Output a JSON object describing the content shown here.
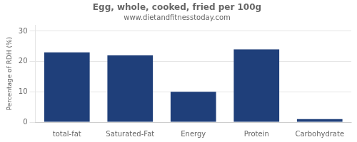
{
  "chart_data": {
    "type": "bar",
    "title": "Egg, whole, cooked, fried per 100g",
    "subtitle": "www.dietandfitnesstoday.com",
    "categories": [
      "total-fat",
      "Saturated-Fat",
      "Energy",
      "Protein",
      "Carbohydrate"
    ],
    "values": [
      23.0,
      22.0,
      10.0,
      24.0,
      1.0
    ],
    "color": "#1F3F7A",
    "ylabel": "Percentage of RDH (%)",
    "ylim": [
      0,
      32
    ],
    "yticks": [
      0,
      10,
      20,
      30
    ],
    "grid": true
  }
}
